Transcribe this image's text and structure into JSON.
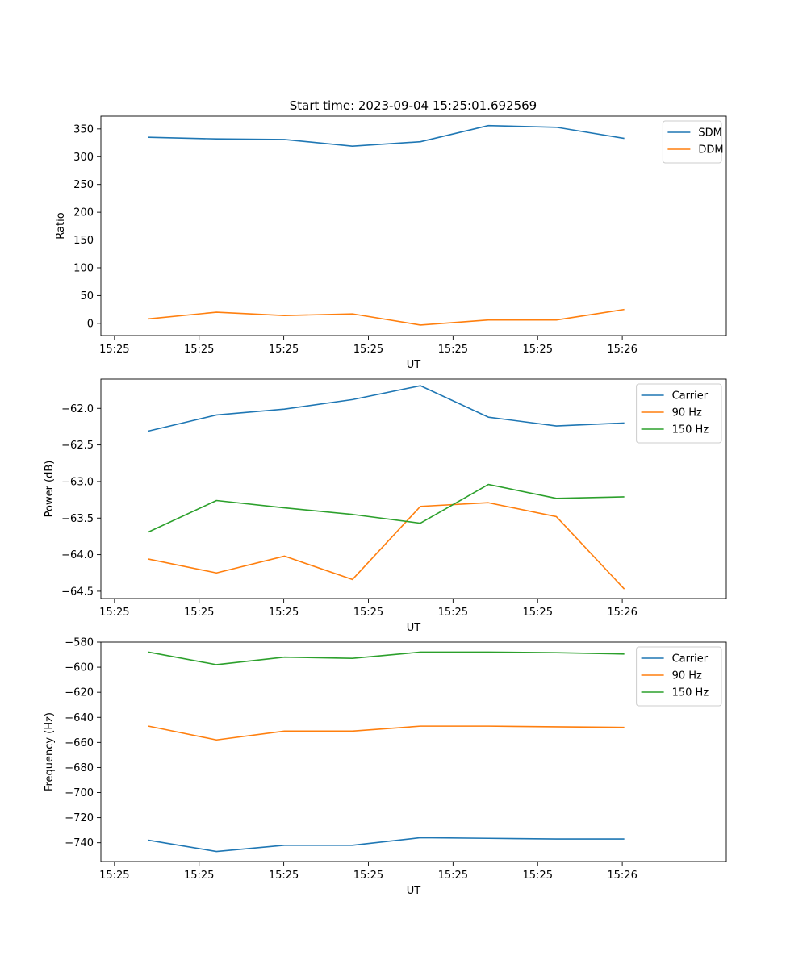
{
  "title": "Start time: 2023-09-04 15:25:01.692569",
  "chart_data": [
    {
      "type": "line",
      "title": "Start time: 2023-09-04 15:25:01.692569",
      "xlabel": "UT",
      "ylabel": "Ratio",
      "x_tick_labels": [
        "15:25",
        "15:25",
        "15:25",
        "15:25",
        "15:25",
        "15:25",
        "15:26"
      ],
      "x": [
        0.5,
        1.5,
        2.5,
        3.5,
        4.5,
        5.5,
        6.5,
        7.5
      ],
      "xlim": [
        -0.2,
        9.0
      ],
      "ylim": [
        -22,
        373
      ],
      "y_ticks": [
        0,
        50,
        100,
        150,
        200,
        250,
        300,
        350
      ],
      "legend": "upper-right",
      "series": [
        {
          "name": "SDM",
          "color": "#1f77b4",
          "values": [
            335,
            332,
            331,
            319,
            327,
            356,
            353,
            333
          ]
        },
        {
          "name": "DDM",
          "color": "#ff7f0e",
          "values": [
            8,
            20,
            14,
            17,
            -3,
            6,
            6,
            25
          ]
        }
      ]
    },
    {
      "type": "line",
      "title": "",
      "xlabel": "UT",
      "ylabel": "Power (dB)",
      "x_tick_labels": [
        "15:25",
        "15:25",
        "15:25",
        "15:25",
        "15:25",
        "15:25",
        "15:26"
      ],
      "x": [
        0.5,
        1.5,
        2.5,
        3.5,
        4.5,
        5.5,
        6.5,
        7.5
      ],
      "xlim": [
        -0.2,
        9.0
      ],
      "ylim": [
        -64.6,
        -61.6
      ],
      "y_ticks": [
        -64.5,
        -64.0,
        -63.5,
        -63.0,
        -62.5,
        -62.0
      ],
      "legend": "upper-right",
      "series": [
        {
          "name": "Carrier",
          "color": "#1f77b4",
          "values": [
            -62.31,
            -62.09,
            -62.01,
            -61.88,
            -61.69,
            -62.12,
            -62.24,
            -62.2
          ]
        },
        {
          "name": "90 Hz",
          "color": "#ff7f0e",
          "values": [
            -64.06,
            -64.25,
            -64.02,
            -64.34,
            -63.34,
            -63.29,
            -63.48,
            -64.47
          ]
        },
        {
          "name": "150 Hz",
          "color": "#2ca02c",
          "values": [
            -63.69,
            -63.26,
            -63.36,
            -63.45,
            -63.57,
            -63.04,
            -63.23,
            -63.21
          ]
        }
      ]
    },
    {
      "type": "line",
      "title": "",
      "xlabel": "UT",
      "ylabel": "Frequency (Hz)",
      "x_tick_labels": [
        "15:25",
        "15:25",
        "15:25",
        "15:25",
        "15:25",
        "15:25",
        "15:26"
      ],
      "x": [
        0.5,
        1.5,
        2.5,
        3.5,
        4.5,
        5.5,
        6.5,
        7.5
      ],
      "xlim": [
        -0.2,
        9.0
      ],
      "ylim": [
        -755,
        -580
      ],
      "y_ticks": [
        -740,
        -720,
        -700,
        -680,
        -660,
        -640,
        -620,
        -600,
        -580
      ],
      "legend": "upper-right",
      "series": [
        {
          "name": "Carrier",
          "color": "#1f77b4",
          "values": [
            -738,
            -747,
            -742,
            -742,
            -736,
            -736.5,
            -737,
            -737
          ]
        },
        {
          "name": "90 Hz",
          "color": "#ff7f0e",
          "values": [
            -647,
            -658,
            -651,
            -651,
            -647,
            -647,
            -647.5,
            -648
          ]
        },
        {
          "name": "150 Hz",
          "color": "#2ca02c",
          "values": [
            -588,
            -598,
            -592,
            -593,
            -588,
            -588,
            -588.5,
            -589.5
          ]
        }
      ]
    }
  ]
}
